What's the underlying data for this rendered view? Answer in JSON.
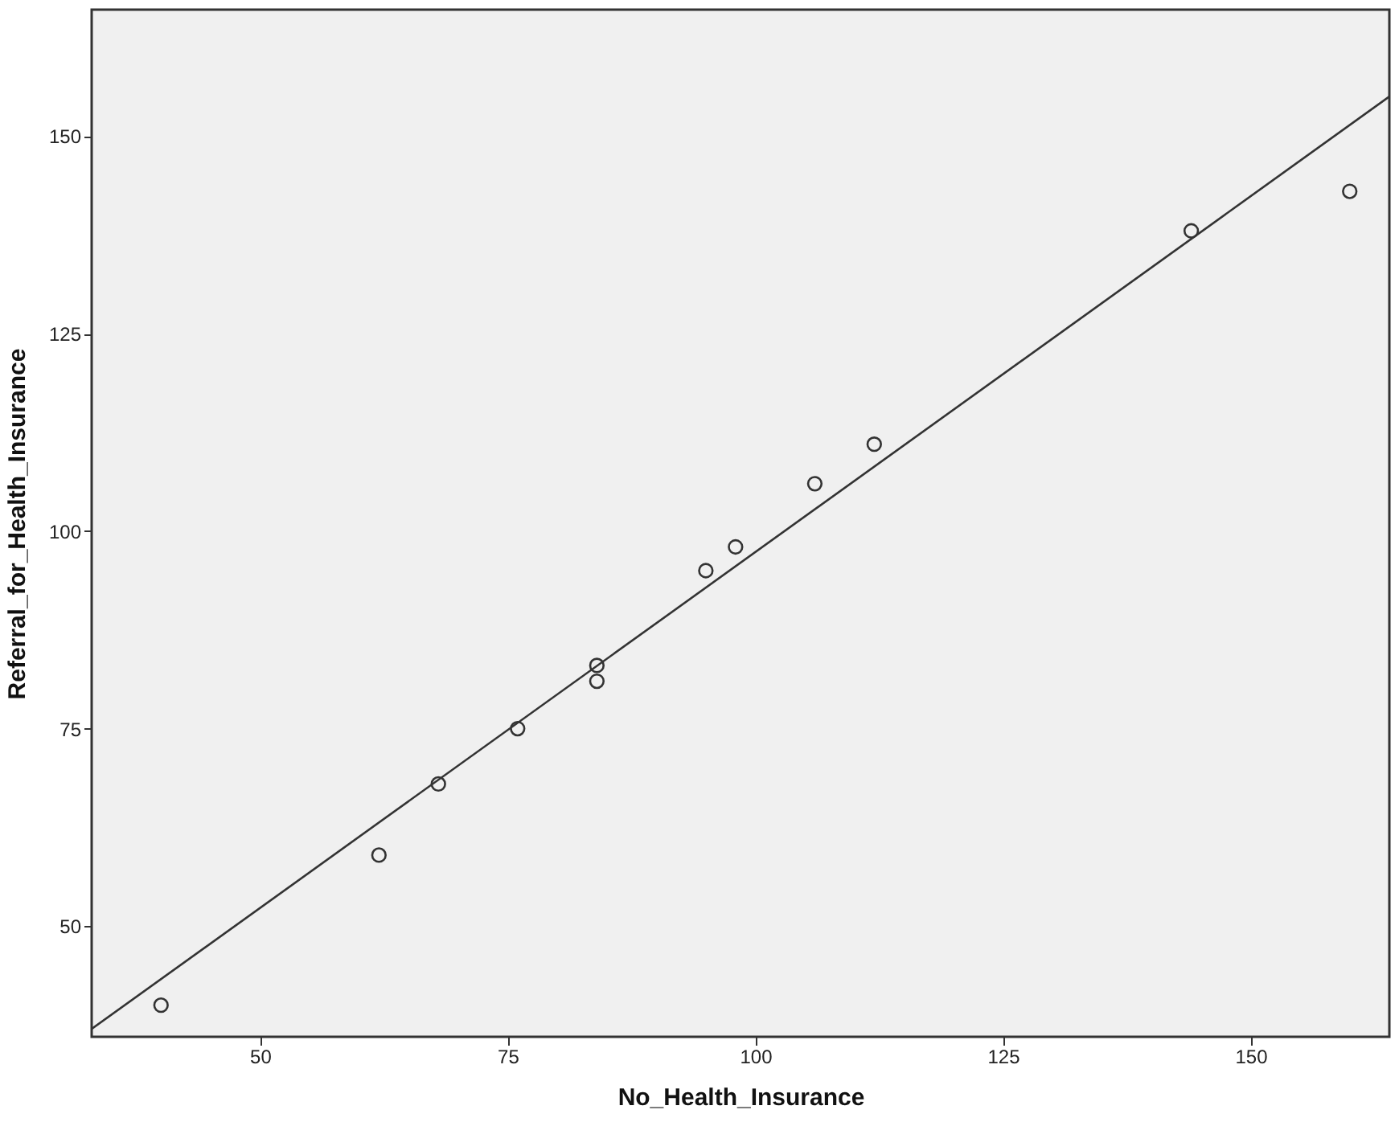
{
  "chart_data": {
    "type": "scatter",
    "xlabel": "No_Health_Insurance",
    "ylabel": "Referral_for_Health_Insurance",
    "xlim": [
      33,
      164
    ],
    "ylim": [
      36,
      166
    ],
    "xticks": [
      50,
      75,
      100,
      125,
      150
    ],
    "yticks": [
      50,
      75,
      100,
      125,
      150
    ],
    "grid": false,
    "marker": "circle",
    "series": [
      {
        "color": "#333333",
        "x": [
          40,
          62,
          68,
          76,
          84,
          84,
          95,
          98,
          106,
          112,
          144,
          160
        ],
        "values": [
          40,
          59,
          68,
          75,
          83,
          81,
          95,
          98,
          106,
          111,
          138,
          143
        ]
      },
      {
        "type": "line",
        "marker": "none",
        "color": "#333333",
        "x": [
          33,
          164
        ],
        "values": [
          37,
          155
        ]
      }
    ]
  }
}
